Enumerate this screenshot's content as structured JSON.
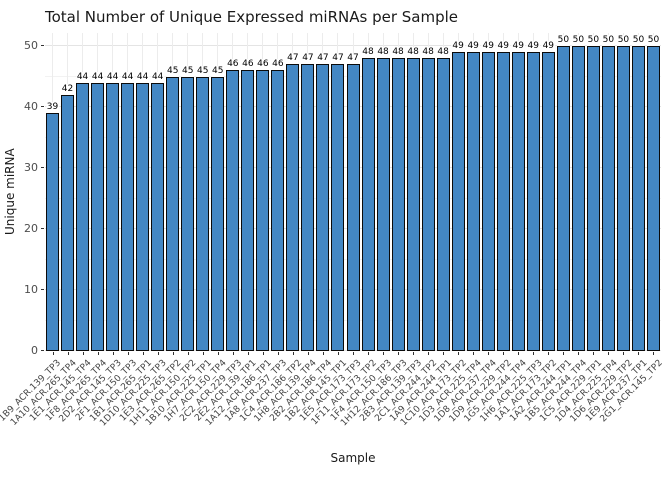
{
  "title": "Total Number of Unique Expressed miRNAs per Sample",
  "x_axis": {
    "label": "Sample"
  },
  "y_axis": {
    "label": "Unique miRNA",
    "ticks": [
      "0",
      "10",
      "20",
      "30",
      "40",
      "50"
    ]
  },
  "colors": {
    "bar_fill": "#4387c4",
    "bar_border": "#0b0b0b",
    "grid_major": "#e4e4e4",
    "grid_minor": "#f2f2f2",
    "axis_text": "#4d4d4d",
    "background": "#ffffff"
  },
  "chart_data": {
    "type": "bar",
    "title": "Total Number of Unique Expressed miRNAs per Sample",
    "xlabel": "Sample",
    "ylabel": "Unique miRNA",
    "ylim": [
      0,
      52
    ],
    "y_ticks": [
      0,
      10,
      20,
      30,
      40,
      50
    ],
    "grid": true,
    "legend": false,
    "bar_value_labels": true,
    "categories": [
      "1B9_ACR.139_TP3",
      "1A10_ACR.265_TP4",
      "1E1_ACR.145_TP4",
      "1F8_ACR.265_TP4",
      "2D2_ACR.145_TP3",
      "2F1_ACR.150_TP3",
      "1B1_ACR.265_TP1",
      "1D10_ACR.225_TP3",
      "1E3_ACR.265_TP2",
      "1H11_ACR.150_TP2",
      "1B10_ACR.225_TP1",
      "1H7_ACR.150_TP4",
      "2C2_ACR.229_TP3",
      "2E2_ACR.139_TP1",
      "1A12_ACR.186_TP1",
      "1A8_ACR.237_TP3",
      "1C4_ACR.186_TP2",
      "1H8_ACR.139_TP4",
      "2B2_ACR.186_TP4",
      "1B2_ACR.145_TP1",
      "1E5_ACR.173_TP3",
      "1F11_ACR.173_TP2",
      "1F4_ACR.150_TP3",
      "1H12_ACR.186_TP3",
      "2B3_ACR.139_TP3",
      "2C1_ACR.244_TP2",
      "1A9_ACR.244_TP1",
      "1C10_ACR.173_TP2",
      "1D3_ACR.225_TP4",
      "1D8_ACR.237_TP4",
      "1D9_ACR.229_TP2",
      "1G5_ACR.244_TP4",
      "1H6_ACR.225_TP3",
      "1A1_ACR.173_TP2",
      "1A2_ACR.244_TP1",
      "1B5_ACR.244_TP4",
      "1C5_ACR.229_TP1",
      "1D4_ACR.225_TP4",
      "1D6_ACR.229_TP2",
      "1E9_ACR.237_TP1",
      "2G1_ACR.145_TP2"
    ],
    "values": [
      39,
      42,
      44,
      44,
      44,
      44,
      44,
      44,
      45,
      45,
      45,
      45,
      46,
      46,
      46,
      46,
      47,
      47,
      47,
      47,
      47,
      48,
      48,
      48,
      48,
      48,
      48,
      49,
      49,
      49,
      49,
      49,
      49,
      49,
      50,
      50,
      50,
      50,
      50,
      50,
      50
    ]
  }
}
